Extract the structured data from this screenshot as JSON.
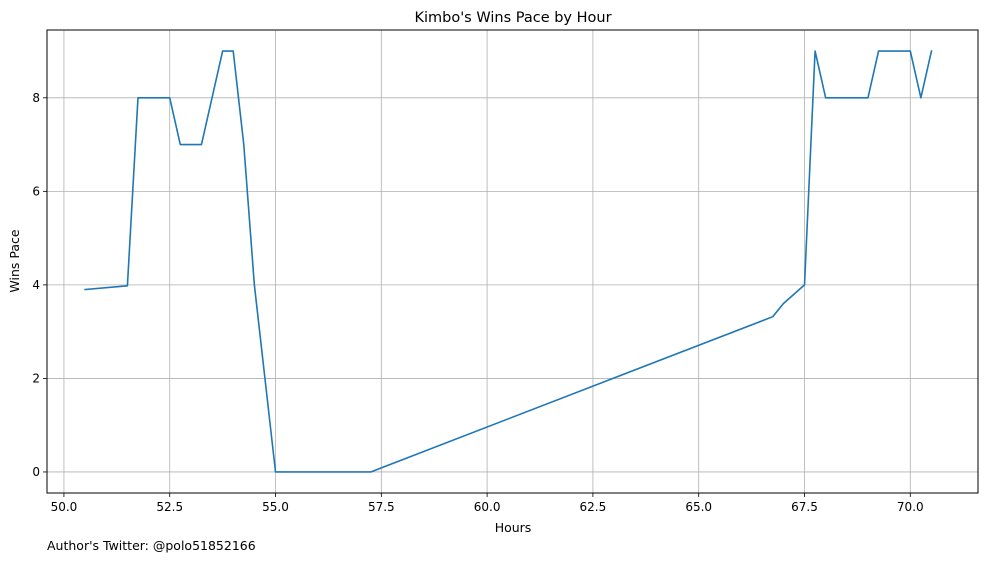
{
  "chart_data": {
    "type": "line",
    "title": "Kimbo's Wins Pace by Hour",
    "xlabel": "Hours",
    "ylabel": "Wins Pace",
    "xlim": [
      49.6,
      71.6
    ],
    "ylim": [
      -0.45,
      9.45
    ],
    "x_ticks": [
      50.0,
      52.5,
      55.0,
      57.5,
      60.0,
      62.5,
      65.0,
      67.5,
      70.0
    ],
    "x_tick_labels": [
      "50.0",
      "52.5",
      "55.0",
      "57.5",
      "60.0",
      "62.5",
      "65.0",
      "67.5",
      "70.0"
    ],
    "y_ticks": [
      0,
      2,
      4,
      6,
      8
    ],
    "y_tick_labels": [
      "0",
      "2",
      "4",
      "6",
      "8"
    ],
    "grid": true,
    "series": [
      {
        "color": "#1f77b4",
        "x": [
          50.5,
          51.5,
          51.75,
          52.5,
          52.75,
          53.25,
          53.75,
          54.0,
          54.25,
          54.5,
          55.0,
          57.25,
          66.75,
          67.0,
          67.5,
          67.75,
          68.0,
          69.0,
          69.25,
          70.0,
          70.25,
          70.5
        ],
        "y": [
          3.9,
          3.98,
          8.0,
          8.0,
          7.0,
          7.0,
          9.0,
          9.0,
          7.0,
          4.0,
          0.0,
          0.0,
          3.32,
          3.6,
          4.0,
          9.0,
          8.0,
          8.0,
          9.0,
          9.0,
          8.0,
          9.0
        ]
      }
    ]
  },
  "footer": {
    "credit": "Author's Twitter: @polo51852166"
  }
}
